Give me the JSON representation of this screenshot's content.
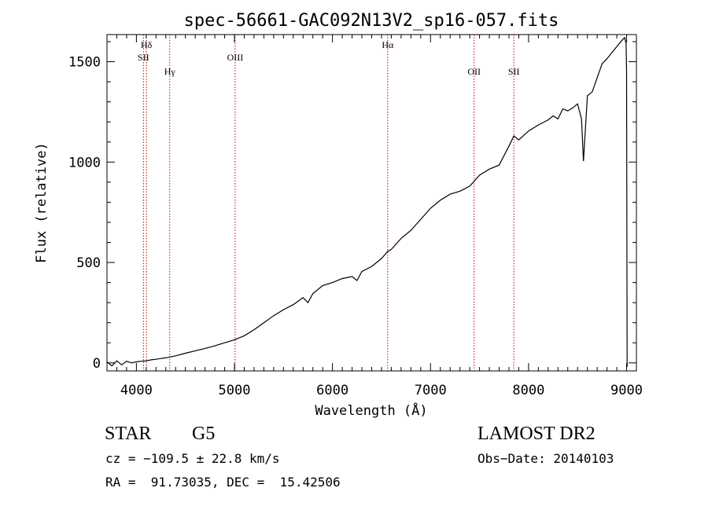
{
  "chart_data": {
    "type": "line",
    "title": "spec-56661-GAC092N13V2_sp16-057.fits",
    "xlabel": "Wavelength (Å)",
    "ylabel": "Flux (relative)",
    "xlim": [
      3700,
      9100
    ],
    "ylim": [
      -40,
      1635
    ],
    "xticks": [
      4000,
      5000,
      6000,
      7000,
      8000,
      9000
    ],
    "yticks": [
      0,
      500,
      1000,
      1500
    ],
    "grid": false,
    "series": [
      {
        "x": [
          3700,
          3750,
          3800,
          3850,
          3900,
          3950,
          4000,
          4050,
          4100,
          4150,
          4200,
          4250,
          4300,
          4350,
          4400,
          4500,
          4600,
          4700,
          4800,
          4900,
          5000,
          5100,
          5200,
          5300,
          5400,
          5500,
          5600,
          5700,
          5750,
          5800,
          5900,
          6000,
          6100,
          6200,
          6250,
          6300,
          6400,
          6500,
          6563,
          6600,
          6700,
          6800,
          6900,
          7000,
          7100,
          7200,
          7300,
          7400,
          7500,
          7600,
          7700,
          7800,
          7850,
          7900,
          8000,
          8100,
          8200,
          8250,
          8300,
          8350,
          8400,
          8450,
          8500,
          8540,
          8560,
          8600,
          8650,
          8700,
          8750,
          8800,
          8850,
          8900,
          8950,
          8980,
          8995,
          9000,
          9005
        ],
        "y": [
          5,
          -15,
          10,
          -10,
          8,
          0,
          5,
          8,
          10,
          15,
          18,
          22,
          25,
          30,
          35,
          48,
          60,
          72,
          85,
          100,
          115,
          135,
          165,
          200,
          235,
          265,
          290,
          325,
          300,
          345,
          385,
          400,
          420,
          430,
          410,
          455,
          480,
          520,
          555,
          565,
          620,
          660,
          715,
          770,
          810,
          840,
          855,
          880,
          935,
          965,
          985,
          1080,
          1130,
          1110,
          1155,
          1185,
          1210,
          1230,
          1215,
          1265,
          1255,
          1270,
          1290,
          1215,
          1005,
          1330,
          1350,
          1420,
          1490,
          1515,
          1545,
          1575,
          1605,
          1620,
          1590,
          1450,
          -20
        ]
      }
    ],
    "line_markers": [
      {
        "label": "Hδ",
        "wavelength": 4102,
        "label_row": 1
      },
      {
        "label": "SII",
        "wavelength": 4072,
        "label_row": 2
      },
      {
        "label": "Hγ",
        "wavelength": 4340,
        "label_row": 3
      },
      {
        "label": "OIII",
        "wavelength": 5007,
        "label_row": 2
      },
      {
        "label": "Hα",
        "wavelength": 6563,
        "label_row": 1
      },
      {
        "label": "OII",
        "wavelength": 7445,
        "label_row": 3
      },
      {
        "label": "SII",
        "wavelength": 7850,
        "label_row": 3
      }
    ],
    "colors": {
      "spectrum": "#000000",
      "markers": "#cc0000"
    }
  },
  "info": {
    "object_class": "STAR",
    "subclass": "G5",
    "survey": "LAMOST DR2",
    "cz": "cz = −109.5 ± 22.8 km/s",
    "obs_date": "Obs−Date: 20140103",
    "coords": "RA =  91.73035, DEC =  15.42506"
  }
}
